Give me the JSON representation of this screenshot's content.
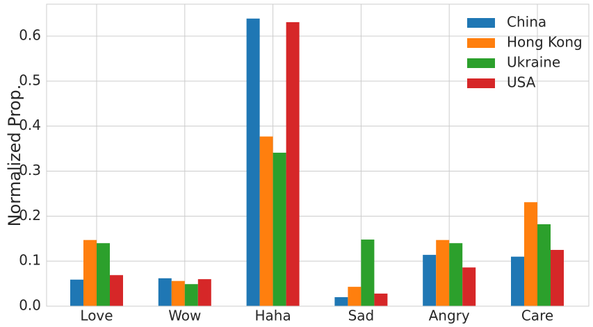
{
  "chart_data": {
    "type": "bar",
    "ylabel": "Normalized Prop.",
    "categories": [
      "Love",
      "Wow",
      "Haha",
      "Sad",
      "Angry",
      "Care"
    ],
    "series": [
      {
        "name": "China",
        "color": "#1f77b4",
        "values": [
          0.059,
          0.062,
          0.639,
          0.02,
          0.114,
          0.11
        ]
      },
      {
        "name": "Hong Kong",
        "color": "#ff7f0e",
        "values": [
          0.147,
          0.056,
          0.377,
          0.043,
          0.147,
          0.231
        ]
      },
      {
        "name": "Ukraine",
        "color": "#2ca02c",
        "values": [
          0.14,
          0.049,
          0.341,
          0.148,
          0.14,
          0.182
        ]
      },
      {
        "name": "USA",
        "color": "#d62728",
        "values": [
          0.069,
          0.06,
          0.631,
          0.028,
          0.086,
          0.125
        ]
      }
    ],
    "ylim": [
      0,
      0.671
    ],
    "yticks": [
      {
        "value": 0,
        "label": "0.0"
      },
      0.1,
      0.2,
      0.3,
      0.4,
      0.5,
      0.6
    ],
    "grid": true,
    "legend": "upper right"
  }
}
